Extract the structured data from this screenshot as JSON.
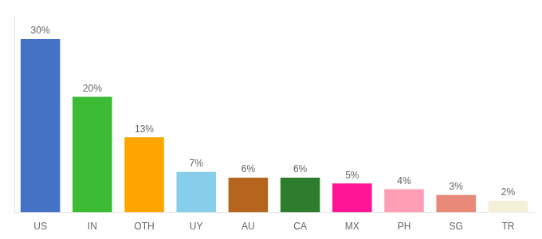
{
  "chart_data": {
    "type": "bar",
    "categories": [
      "US",
      "IN",
      "OTH",
      "UY",
      "AU",
      "CA",
      "MX",
      "PH",
      "SG",
      "TR"
    ],
    "values": [
      30,
      20,
      13,
      7,
      6,
      6,
      5,
      4,
      3,
      2
    ],
    "value_labels": [
      "30%",
      "20%",
      "13%",
      "7%",
      "6%",
      "6%",
      "5%",
      "4%",
      "3%",
      "2%"
    ],
    "data_labels": true,
    "colors": [
      "#4472c4",
      "#3dbb35",
      "#ffa500",
      "#87ceeb",
      "#b5651d",
      "#2e7d2e",
      "#ff1493",
      "#ff9eb5",
      "#e8897a",
      "#f5f0d8"
    ],
    "ylim": [
      0,
      34
    ],
    "grid": false,
    "tick_labels": "x"
  }
}
